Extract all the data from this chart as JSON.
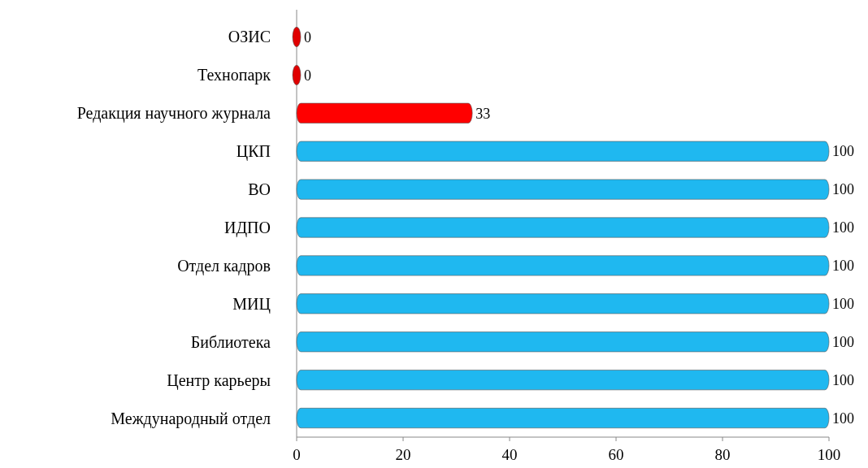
{
  "chart_data": {
    "type": "bar",
    "orientation": "horizontal",
    "categories": [
      "ОЗИС",
      "Технопарк",
      "Редакция научного журнала",
      "ЦКП",
      "ВО",
      "ИДПО",
      "Отдел кадров",
      "МИЦ",
      "Библиотека",
      "Центр карьеры",
      "Международный отдел"
    ],
    "values": [
      0,
      0,
      33,
      100,
      100,
      100,
      100,
      100,
      100,
      100,
      100
    ],
    "colors": [
      "#e00000",
      "#e00000",
      "#ff0000",
      "#1fb8f0",
      "#1fb8f0",
      "#1fb8f0",
      "#1fb8f0",
      "#1fb8f0",
      "#1fb8f0",
      "#1fb8f0",
      "#1fb8f0"
    ],
    "xlim": [
      0,
      100
    ],
    "xticks": [
      0,
      20,
      40,
      60,
      80,
      100
    ],
    "data_labels": true,
    "grid": false
  }
}
